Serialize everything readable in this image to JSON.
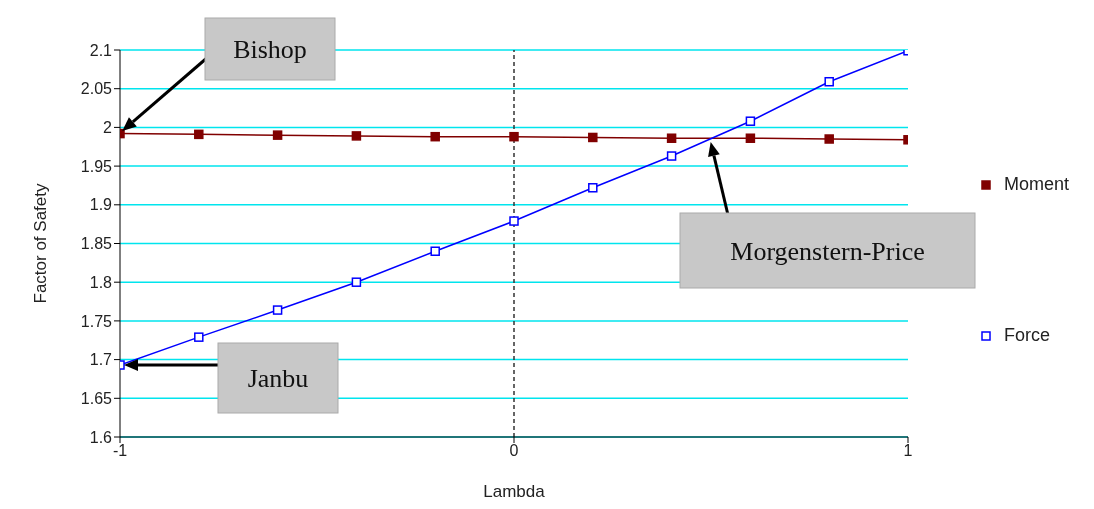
{
  "chart_data": {
    "type": "line",
    "xlabel": "Lambda",
    "ylabel": "Factor of Safety",
    "x": [
      -1,
      -0.8,
      -0.6,
      -0.4,
      -0.2,
      0,
      0.2,
      0.4,
      0.6,
      0.8,
      1
    ],
    "series": [
      {
        "name": "Moment",
        "color": "#800000",
        "marker": "square",
        "values": [
          1.992,
          1.991,
          1.99,
          1.989,
          1.988,
          1.988,
          1.987,
          1.986,
          1.986,
          1.985,
          1.984
        ]
      },
      {
        "name": "Force",
        "color": "#0000ff",
        "marker": "square",
        "values": [
          1.693,
          1.729,
          1.764,
          1.8,
          1.84,
          1.879,
          1.922,
          1.963,
          2.008,
          2.059,
          2.099
        ]
      }
    ],
    "xlim": [
      -1,
      1
    ],
    "xticks": [
      -1,
      0,
      1
    ],
    "ylim": [
      1.6,
      2.1
    ],
    "yticks": [
      1.6,
      1.65,
      1.7,
      1.75,
      1.8,
      1.85,
      1.9,
      1.95,
      2,
      2.05,
      2.1
    ],
    "grid": "y",
    "legend": "right",
    "line_style": "solid",
    "ref_lines": [
      {
        "axis": "x",
        "value": 0,
        "color": "#333333",
        "line_style": "dashed"
      }
    ],
    "annotations": [
      "Bishop",
      "Janbu",
      "Morgenstern-Price"
    ]
  }
}
